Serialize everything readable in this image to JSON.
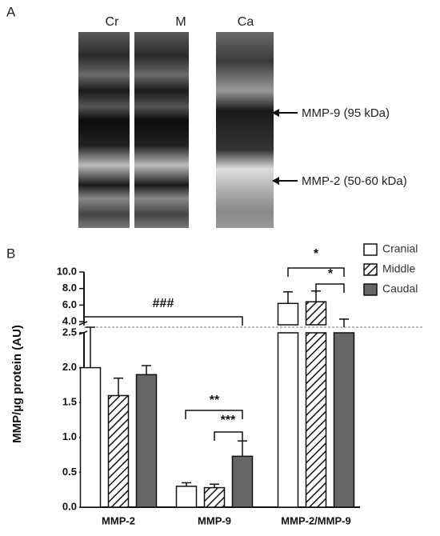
{
  "gel": {
    "panel_label": "A",
    "lanes": [
      "Cr",
      "M",
      "Ca"
    ],
    "bands": [
      "MMP-9 (95 kDa)",
      "MMP-2 (50-60 kDa)"
    ]
  },
  "chart_data": {
    "type": "bar",
    "panel_label": "B",
    "y_label": "MMP/µg protein (AU)",
    "categories": [
      "MMP-2",
      "MMP-9",
      "MMP-2/MMP-9"
    ],
    "series": [
      {
        "name": "Cranial",
        "color": "#ffffff",
        "values": [
          2.0,
          0.3,
          6.2
        ],
        "errors": [
          0.9,
          0.05,
          1.4
        ]
      },
      {
        "name": "Middle",
        "color": "#ffffff",
        "pattern": "hatch",
        "values": [
          1.6,
          0.28,
          6.4
        ],
        "errors": [
          0.25,
          0.05,
          1.3
        ]
      },
      {
        "name": "Caudal",
        "color": "#666666",
        "values": [
          1.9,
          0.73,
          3.9
        ],
        "errors": [
          0.13,
          0.22,
          0.4
        ]
      }
    ],
    "ylim": [
      0,
      10
    ],
    "y_break": [
      2.5,
      4
    ],
    "yticks": [
      {
        "value": 0,
        "label": "0.0"
      },
      0.5,
      {
        "value": 1,
        "label": "1.0"
      },
      1.5,
      {
        "value": 2,
        "label": "2.0"
      },
      2.5,
      {
        "value": 4,
        "label": "4.0"
      },
      {
        "value": 6,
        "label": "6.0"
      },
      {
        "value": 8,
        "label": "8.0"
      },
      {
        "value": 10,
        "label": "10.0"
      }
    ],
    "annotations": [
      "###",
      "**",
      "***",
      "*",
      "*"
    ]
  }
}
